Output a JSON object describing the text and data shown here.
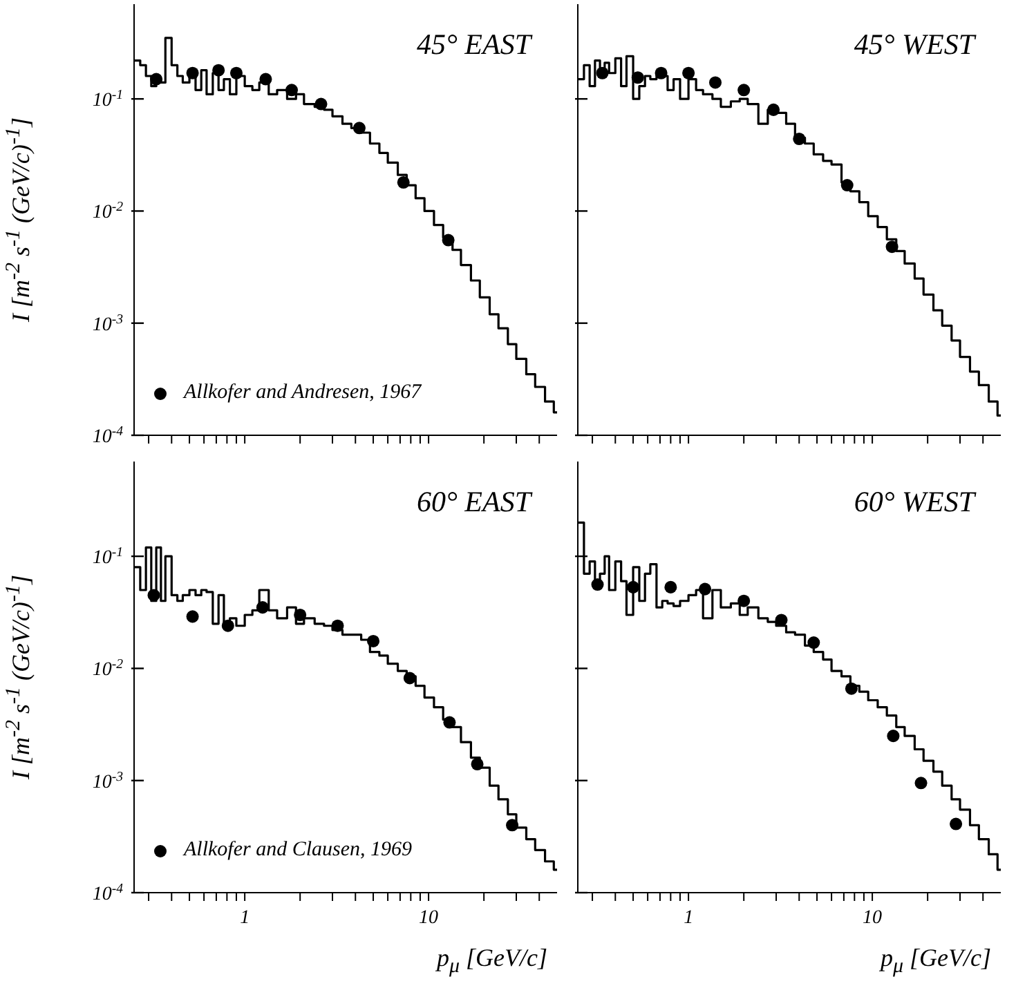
{
  "chart_data": [
    {
      "type": "step",
      "title": "45° EAST",
      "ylabel": "I [m$^{-2}$ s$^{-1}$ (GeV/c)$^{-1}$]",
      "log": "xy",
      "xlim": [
        0.25,
        50
      ],
      "ylim": [
        0.0001,
        0.7
      ],
      "xticks": [
        {
          "value": 0.3,
          "label": null
        },
        {
          "value": 0.4,
          "label": null
        },
        {
          "value": 0.5,
          "label": null
        },
        {
          "value": 0.6,
          "label": null
        },
        {
          "value": 0.7,
          "label": null
        },
        {
          "value": 0.8,
          "label": null
        },
        {
          "value": 0.9,
          "label": null
        },
        {
          "value": 1,
          "label": null
        },
        {
          "value": 2,
          "label": null
        },
        {
          "value": 3,
          "label": null
        },
        {
          "value": 4,
          "label": null
        },
        {
          "value": 5,
          "label": null
        },
        {
          "value": 6,
          "label": null
        },
        {
          "value": 7,
          "label": null
        },
        {
          "value": 8,
          "label": null
        },
        {
          "value": 9,
          "label": null
        },
        {
          "value": 10,
          "label": null
        },
        {
          "value": 20,
          "label": null
        },
        {
          "value": 30,
          "label": null
        },
        {
          "value": 40,
          "label": null
        }
      ],
      "yticks": [
        {
          "value": 0.0001,
          "label": "10$^{-4}$"
        },
        {
          "value": 0.001,
          "label": "10$^{-3}$"
        },
        {
          "value": 0.01,
          "label": "10$^{-2}$"
        },
        {
          "value": 0.1,
          "label": "10$^{-1}$"
        }
      ],
      "tick_labels": "y",
      "legend": "bottom left",
      "series": [
        {
          "color": "#000000",
          "x": [
            0.25,
            0.27,
            0.29,
            0.31,
            0.33,
            0.35,
            0.37,
            0.4,
            0.43,
            0.46,
            0.5,
            0.54,
            0.58,
            0.62,
            0.67,
            0.72,
            0.77,
            0.83,
            0.9,
            1.0,
            1.1,
            1.2,
            1.35,
            1.5,
            1.7,
            1.9,
            2.1,
            2.4,
            2.7,
            3.0,
            3.4,
            3.8,
            4.3,
            4.8,
            5.4,
            6.0,
            6.8,
            7.6,
            8.5,
            9.5,
            10.7,
            12,
            13.5,
            15,
            17,
            19,
            21.5,
            24,
            27,
            30,
            34,
            38,
            43,
            48
          ],
          "values": [
            0.22,
            0.2,
            0.16,
            0.13,
            0.15,
            0.14,
            0.35,
            0.2,
            0.16,
            0.14,
            0.17,
            0.12,
            0.18,
            0.11,
            0.17,
            0.12,
            0.15,
            0.11,
            0.16,
            0.13,
            0.12,
            0.14,
            0.11,
            0.12,
            0.1,
            0.11,
            0.09,
            0.085,
            0.08,
            0.07,
            0.06,
            0.055,
            0.05,
            0.04,
            0.033,
            0.027,
            0.021,
            0.017,
            0.013,
            0.01,
            0.0075,
            0.0058,
            0.0045,
            0.0033,
            0.0024,
            0.0017,
            0.0012,
            0.0009,
            0.00065,
            0.00048,
            0.00035,
            0.00027,
            0.0002,
            0.00016
          ]
        },
        {
          "type": "scatter",
          "marker": "circle",
          "name": "Allkofer and Andresen, 1967",
          "color": "#000000",
          "x": [
            0.33,
            0.52,
            0.72,
            0.9,
            1.3,
            1.8,
            2.6,
            4.2,
            7.3,
            12.8
          ],
          "values": [
            0.15,
            0.17,
            0.18,
            0.17,
            0.15,
            0.12,
            0.09,
            0.055,
            0.018,
            0.0055
          ]
        }
      ]
    },
    {
      "type": "step",
      "title": "45° WEST",
      "log": "xy",
      "xlim": [
        0.25,
        50
      ],
      "ylim": [
        0.0001,
        0.7
      ],
      "xticks": [
        {
          "value": 0.3,
          "label": null
        },
        {
          "value": 0.4,
          "label": null
        },
        {
          "value": 0.5,
          "label": null
        },
        {
          "value": 0.6,
          "label": null
        },
        {
          "value": 0.7,
          "label": null
        },
        {
          "value": 0.8,
          "label": null
        },
        {
          "value": 0.9,
          "label": null
        },
        {
          "value": 1,
          "label": null
        },
        {
          "value": 2,
          "label": null
        },
        {
          "value": 3,
          "label": null
        },
        {
          "value": 4,
          "label": null
        },
        {
          "value": 5,
          "label": null
        },
        {
          "value": 6,
          "label": null
        },
        {
          "value": 7,
          "label": null
        },
        {
          "value": 8,
          "label": null
        },
        {
          "value": 9,
          "label": null
        },
        {
          "value": 10,
          "label": null
        },
        {
          "value": 20,
          "label": null
        },
        {
          "value": 30,
          "label": null
        },
        {
          "value": 40,
          "label": null
        }
      ],
      "yticks": [
        {
          "value": 0.0001,
          "label": null
        },
        {
          "value": 0.001,
          "label": null
        },
        {
          "value": 0.01,
          "label": null
        },
        {
          "value": 0.1,
          "label": null
        }
      ],
      "tick_labels": false,
      "series": [
        {
          "color": "#000000",
          "x": [
            0.25,
            0.27,
            0.29,
            0.31,
            0.33,
            0.35,
            0.37,
            0.4,
            0.43,
            0.46,
            0.5,
            0.54,
            0.58,
            0.62,
            0.67,
            0.72,
            0.77,
            0.83,
            0.9,
            1.0,
            1.1,
            1.2,
            1.35,
            1.5,
            1.7,
            1.9,
            2.1,
            2.4,
            2.7,
            3.0,
            3.4,
            3.8,
            4.3,
            4.8,
            5.4,
            6.0,
            6.8,
            7.6,
            8.5,
            9.5,
            10.7,
            12,
            13.5,
            15,
            17,
            19,
            21.5,
            24,
            27,
            30,
            34,
            38,
            43,
            48
          ],
          "values": [
            0.15,
            0.2,
            0.13,
            0.22,
            0.16,
            0.21,
            0.17,
            0.23,
            0.13,
            0.24,
            0.1,
            0.13,
            0.16,
            0.15,
            0.17,
            0.16,
            0.12,
            0.15,
            0.1,
            0.15,
            0.12,
            0.11,
            0.1,
            0.085,
            0.095,
            0.1,
            0.09,
            0.06,
            0.08,
            0.075,
            0.06,
            0.045,
            0.04,
            0.032,
            0.028,
            0.026,
            0.018,
            0.015,
            0.012,
            0.009,
            0.0072,
            0.0056,
            0.0044,
            0.0034,
            0.0025,
            0.0018,
            0.0013,
            0.00095,
            0.0007,
            0.0005,
            0.00037,
            0.00028,
            0.0002,
            0.00015
          ]
        },
        {
          "type": "scatter",
          "marker": "circle",
          "color": "#000000",
          "x": [
            0.34,
            0.53,
            0.71,
            1.0,
            1.4,
            2.0,
            2.9,
            4.0,
            7.3,
            12.8
          ],
          "values": [
            0.17,
            0.155,
            0.17,
            0.17,
            0.14,
            0.12,
            0.08,
            0.044,
            0.017,
            0.0048
          ]
        }
      ]
    },
    {
      "type": "step",
      "title": "60° EAST",
      "xlabel": "p$_{μ}$ [GeV/c]",
      "ylabel": "I [m$^{-2}$ s$^{-1}$ (GeV/c)$^{-1}$]",
      "log": "xy",
      "xlim": [
        0.25,
        50
      ],
      "ylim": [
        0.0001,
        0.7
      ],
      "xticks": [
        {
          "value": 0.3,
          "label": null
        },
        {
          "value": 0.4,
          "label": null
        },
        {
          "value": 0.5,
          "label": null
        },
        {
          "value": 0.6,
          "label": null
        },
        {
          "value": 0.7,
          "label": null
        },
        {
          "value": 0.8,
          "label": null
        },
        {
          "value": 0.9,
          "label": null
        },
        {
          "value": 1,
          "label": "1"
        },
        {
          "value": 2,
          "label": null
        },
        {
          "value": 3,
          "label": null
        },
        {
          "value": 4,
          "label": null
        },
        {
          "value": 5,
          "label": null
        },
        {
          "value": 6,
          "label": null
        },
        {
          "value": 7,
          "label": null
        },
        {
          "value": 8,
          "label": null
        },
        {
          "value": 9,
          "label": null
        },
        {
          "value": 10,
          "label": "10"
        },
        {
          "value": 20,
          "label": null
        },
        {
          "value": 30,
          "label": null
        },
        {
          "value": 40,
          "label": null
        }
      ],
      "yticks": [
        {
          "value": 0.0001,
          "label": "10$^{-4}$"
        },
        {
          "value": 0.001,
          "label": "10$^{-3}$"
        },
        {
          "value": 0.01,
          "label": "10$^{-2}$"
        },
        {
          "value": 0.1,
          "label": "10$^{-1}$"
        }
      ],
      "legend": "bottom left",
      "series": [
        {
          "color": "#000000",
          "x": [
            0.25,
            0.27,
            0.29,
            0.31,
            0.33,
            0.35,
            0.37,
            0.4,
            0.43,
            0.46,
            0.5,
            0.54,
            0.58,
            0.62,
            0.67,
            0.72,
            0.77,
            0.83,
            0.9,
            1.0,
            1.1,
            1.2,
            1.35,
            1.5,
            1.7,
            1.9,
            2.1,
            2.4,
            2.7,
            3.0,
            3.4,
            3.8,
            4.3,
            4.8,
            5.4,
            6.0,
            6.8,
            7.6,
            8.5,
            9.5,
            10.7,
            12,
            13.5,
            15,
            17,
            19,
            21.5,
            24,
            27,
            30,
            34,
            38,
            43,
            48
          ],
          "values": [
            0.08,
            0.05,
            0.12,
            0.04,
            0.12,
            0.04,
            0.1,
            0.045,
            0.04,
            0.045,
            0.05,
            0.045,
            0.05,
            0.048,
            0.025,
            0.045,
            0.025,
            0.028,
            0.024,
            0.03,
            0.033,
            0.05,
            0.033,
            0.028,
            0.035,
            0.025,
            0.028,
            0.025,
            0.024,
            0.022,
            0.02,
            0.02,
            0.018,
            0.014,
            0.013,
            0.011,
            0.0095,
            0.0085,
            0.007,
            0.0055,
            0.0045,
            0.0035,
            0.003,
            0.0022,
            0.0016,
            0.0013,
            0.0009,
            0.00068,
            0.0005,
            0.00038,
            0.0003,
            0.00024,
            0.00019,
            0.00016
          ]
        },
        {
          "type": "scatter",
          "marker": "circle",
          "name": "Allkofer and Clausen, 1969",
          "color": "#000000",
          "x": [
            0.32,
            0.52,
            0.81,
            1.25,
            2.0,
            3.2,
            5.0,
            7.9,
            13,
            18.4,
            28.5
          ],
          "values": [
            0.045,
            0.029,
            0.024,
            0.035,
            0.03,
            0.024,
            0.0175,
            0.0082,
            0.0033,
            0.0014,
            0.0004
          ]
        }
      ]
    },
    {
      "type": "step",
      "title": "60° WEST",
      "xlabel": "p$_{μ}$ [GeV/c]",
      "log": "xy",
      "xlim": [
        0.25,
        50
      ],
      "ylim": [
        0.0001,
        0.7
      ],
      "xticks": [
        {
          "value": 0.3,
          "label": null
        },
        {
          "value": 0.4,
          "label": null
        },
        {
          "value": 0.5,
          "label": null
        },
        {
          "value": 0.6,
          "label": null
        },
        {
          "value": 0.7,
          "label": null
        },
        {
          "value": 0.8,
          "label": null
        },
        {
          "value": 0.9,
          "label": null
        },
        {
          "value": 1,
          "label": "1"
        },
        {
          "value": 2,
          "label": null
        },
        {
          "value": 3,
          "label": null
        },
        {
          "value": 4,
          "label": null
        },
        {
          "value": 5,
          "label": null
        },
        {
          "value": 6,
          "label": null
        },
        {
          "value": 7,
          "label": null
        },
        {
          "value": 8,
          "label": null
        },
        {
          "value": 9,
          "label": null
        },
        {
          "value": 10,
          "label": "10"
        },
        {
          "value": 20,
          "label": null
        },
        {
          "value": 30,
          "label": null
        },
        {
          "value": 40,
          "label": null
        }
      ],
      "yticks": [
        {
          "value": 0.0001,
          "label": null
        },
        {
          "value": 0.001,
          "label": null
        },
        {
          "value": 0.01,
          "label": null
        },
        {
          "value": 0.1,
          "label": null
        }
      ],
      "tick_labels": "x",
      "series": [
        {
          "color": "#000000",
          "x": [
            0.25,
            0.27,
            0.29,
            0.31,
            0.33,
            0.35,
            0.37,
            0.4,
            0.43,
            0.46,
            0.5,
            0.54,
            0.58,
            0.62,
            0.67,
            0.72,
            0.77,
            0.83,
            0.9,
            1.0,
            1.1,
            1.2,
            1.35,
            1.5,
            1.7,
            1.9,
            2.1,
            2.4,
            2.7,
            3.0,
            3.4,
            3.8,
            4.3,
            4.8,
            5.4,
            6.0,
            6.8,
            7.6,
            8.5,
            9.5,
            10.7,
            12,
            13.5,
            15,
            17,
            19,
            21.5,
            24,
            27,
            30,
            34,
            38,
            43,
            48
          ],
          "values": [
            0.2,
            0.07,
            0.09,
            0.06,
            0.07,
            0.1,
            0.05,
            0.09,
            0.06,
            0.03,
            0.08,
            0.04,
            0.07,
            0.085,
            0.035,
            0.04,
            0.038,
            0.036,
            0.04,
            0.045,
            0.05,
            0.028,
            0.05,
            0.035,
            0.038,
            0.03,
            0.035,
            0.028,
            0.026,
            0.024,
            0.021,
            0.02,
            0.016,
            0.014,
            0.012,
            0.0095,
            0.0085,
            0.007,
            0.0062,
            0.0052,
            0.0045,
            0.0038,
            0.003,
            0.0025,
            0.0019,
            0.0015,
            0.0012,
            0.0009,
            0.00068,
            0.00055,
            0.0004,
            0.0003,
            0.00022,
            0.00016
          ]
        },
        {
          "type": "scatter",
          "marker": "circle",
          "color": "#000000",
          "x": [
            0.32,
            0.5,
            0.8,
            1.23,
            2.0,
            3.2,
            4.8,
            7.7,
            13,
            18.4,
            28.5
          ],
          "values": [
            0.056,
            0.053,
            0.053,
            0.051,
            0.04,
            0.027,
            0.017,
            0.0066,
            0.0025,
            0.00095,
            0.00041
          ]
        }
      ]
    }
  ]
}
